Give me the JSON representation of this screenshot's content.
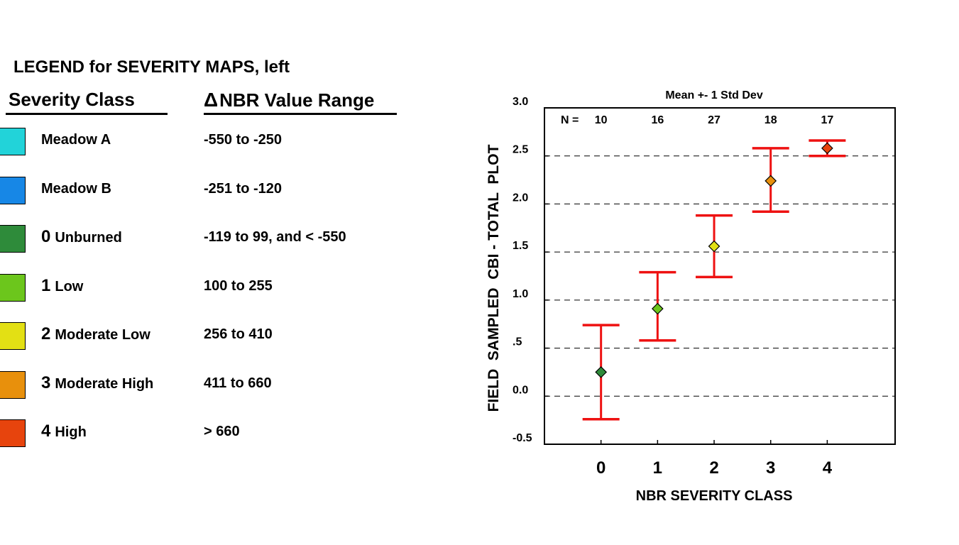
{
  "legend": {
    "title": "LEGEND for SEVERITY MAPS, left",
    "header_class": "Severity Class",
    "header_range_symbol": "Δ",
    "header_range": "NBR Value Range",
    "rows": [
      {
        "num": "",
        "label": "Meadow A",
        "range": "-550 to -250",
        "color": "#22d3d9"
      },
      {
        "num": "",
        "label": "Meadow B",
        "range": "-251 to -120",
        "color": "#1787e6"
      },
      {
        "num": "0",
        "label": "Unburned",
        "range": "-119 to 99, and < -550",
        "color": "#2e8b3a"
      },
      {
        "num": "1",
        "label": "Low",
        "range": "100 to 255",
        "color": "#6cc61c"
      },
      {
        "num": "2",
        "label": "Moderate Low",
        "range": "256 to 410",
        "color": "#e3e014"
      },
      {
        "num": "3",
        "label": "Moderate High",
        "range": "411 to 660",
        "color": "#e8900c"
      },
      {
        "num": "4",
        "label": "High",
        "range": "> 660",
        "color": "#e7440d"
      }
    ]
  },
  "chart_data": {
    "type": "scatter",
    "title": "Mean +- 1 Std Dev",
    "xlabel": "NBR SEVERITY CLASS",
    "ylabel": "FIELD  SAMPLED  CBI - TOTAL  PLOT",
    "x_categories": [
      "0",
      "1",
      "2",
      "3",
      "4"
    ],
    "x_range": [
      -1,
      5.2
    ],
    "ylim": [
      -0.5,
      3.0
    ],
    "y_ticks": [
      3.0,
      2.5,
      2.0,
      1.5,
      1.0,
      0.5,
      0.0,
      -0.5
    ],
    "y_tick_labels": [
      "3.0",
      "2.5",
      "2.0",
      "1.5",
      "1.0",
      ".5",
      "0.0",
      "-0.5"
    ],
    "grid": "horizontal dashed",
    "n_label": "N =",
    "counts": [
      "10",
      "16",
      "27",
      "18",
      "17"
    ],
    "means": [
      0.25,
      0.91,
      1.56,
      2.24,
      2.58
    ],
    "upper": [
      0.74,
      1.29,
      1.88,
      2.58,
      2.66
    ],
    "lower": [
      -0.24,
      0.58,
      1.24,
      1.92,
      2.5
    ],
    "colors": [
      "#2e8b3a",
      "#6cc61c",
      "#e3e014",
      "#e8900c",
      "#e7440d"
    ],
    "error_bar_color": "#ee1111"
  }
}
